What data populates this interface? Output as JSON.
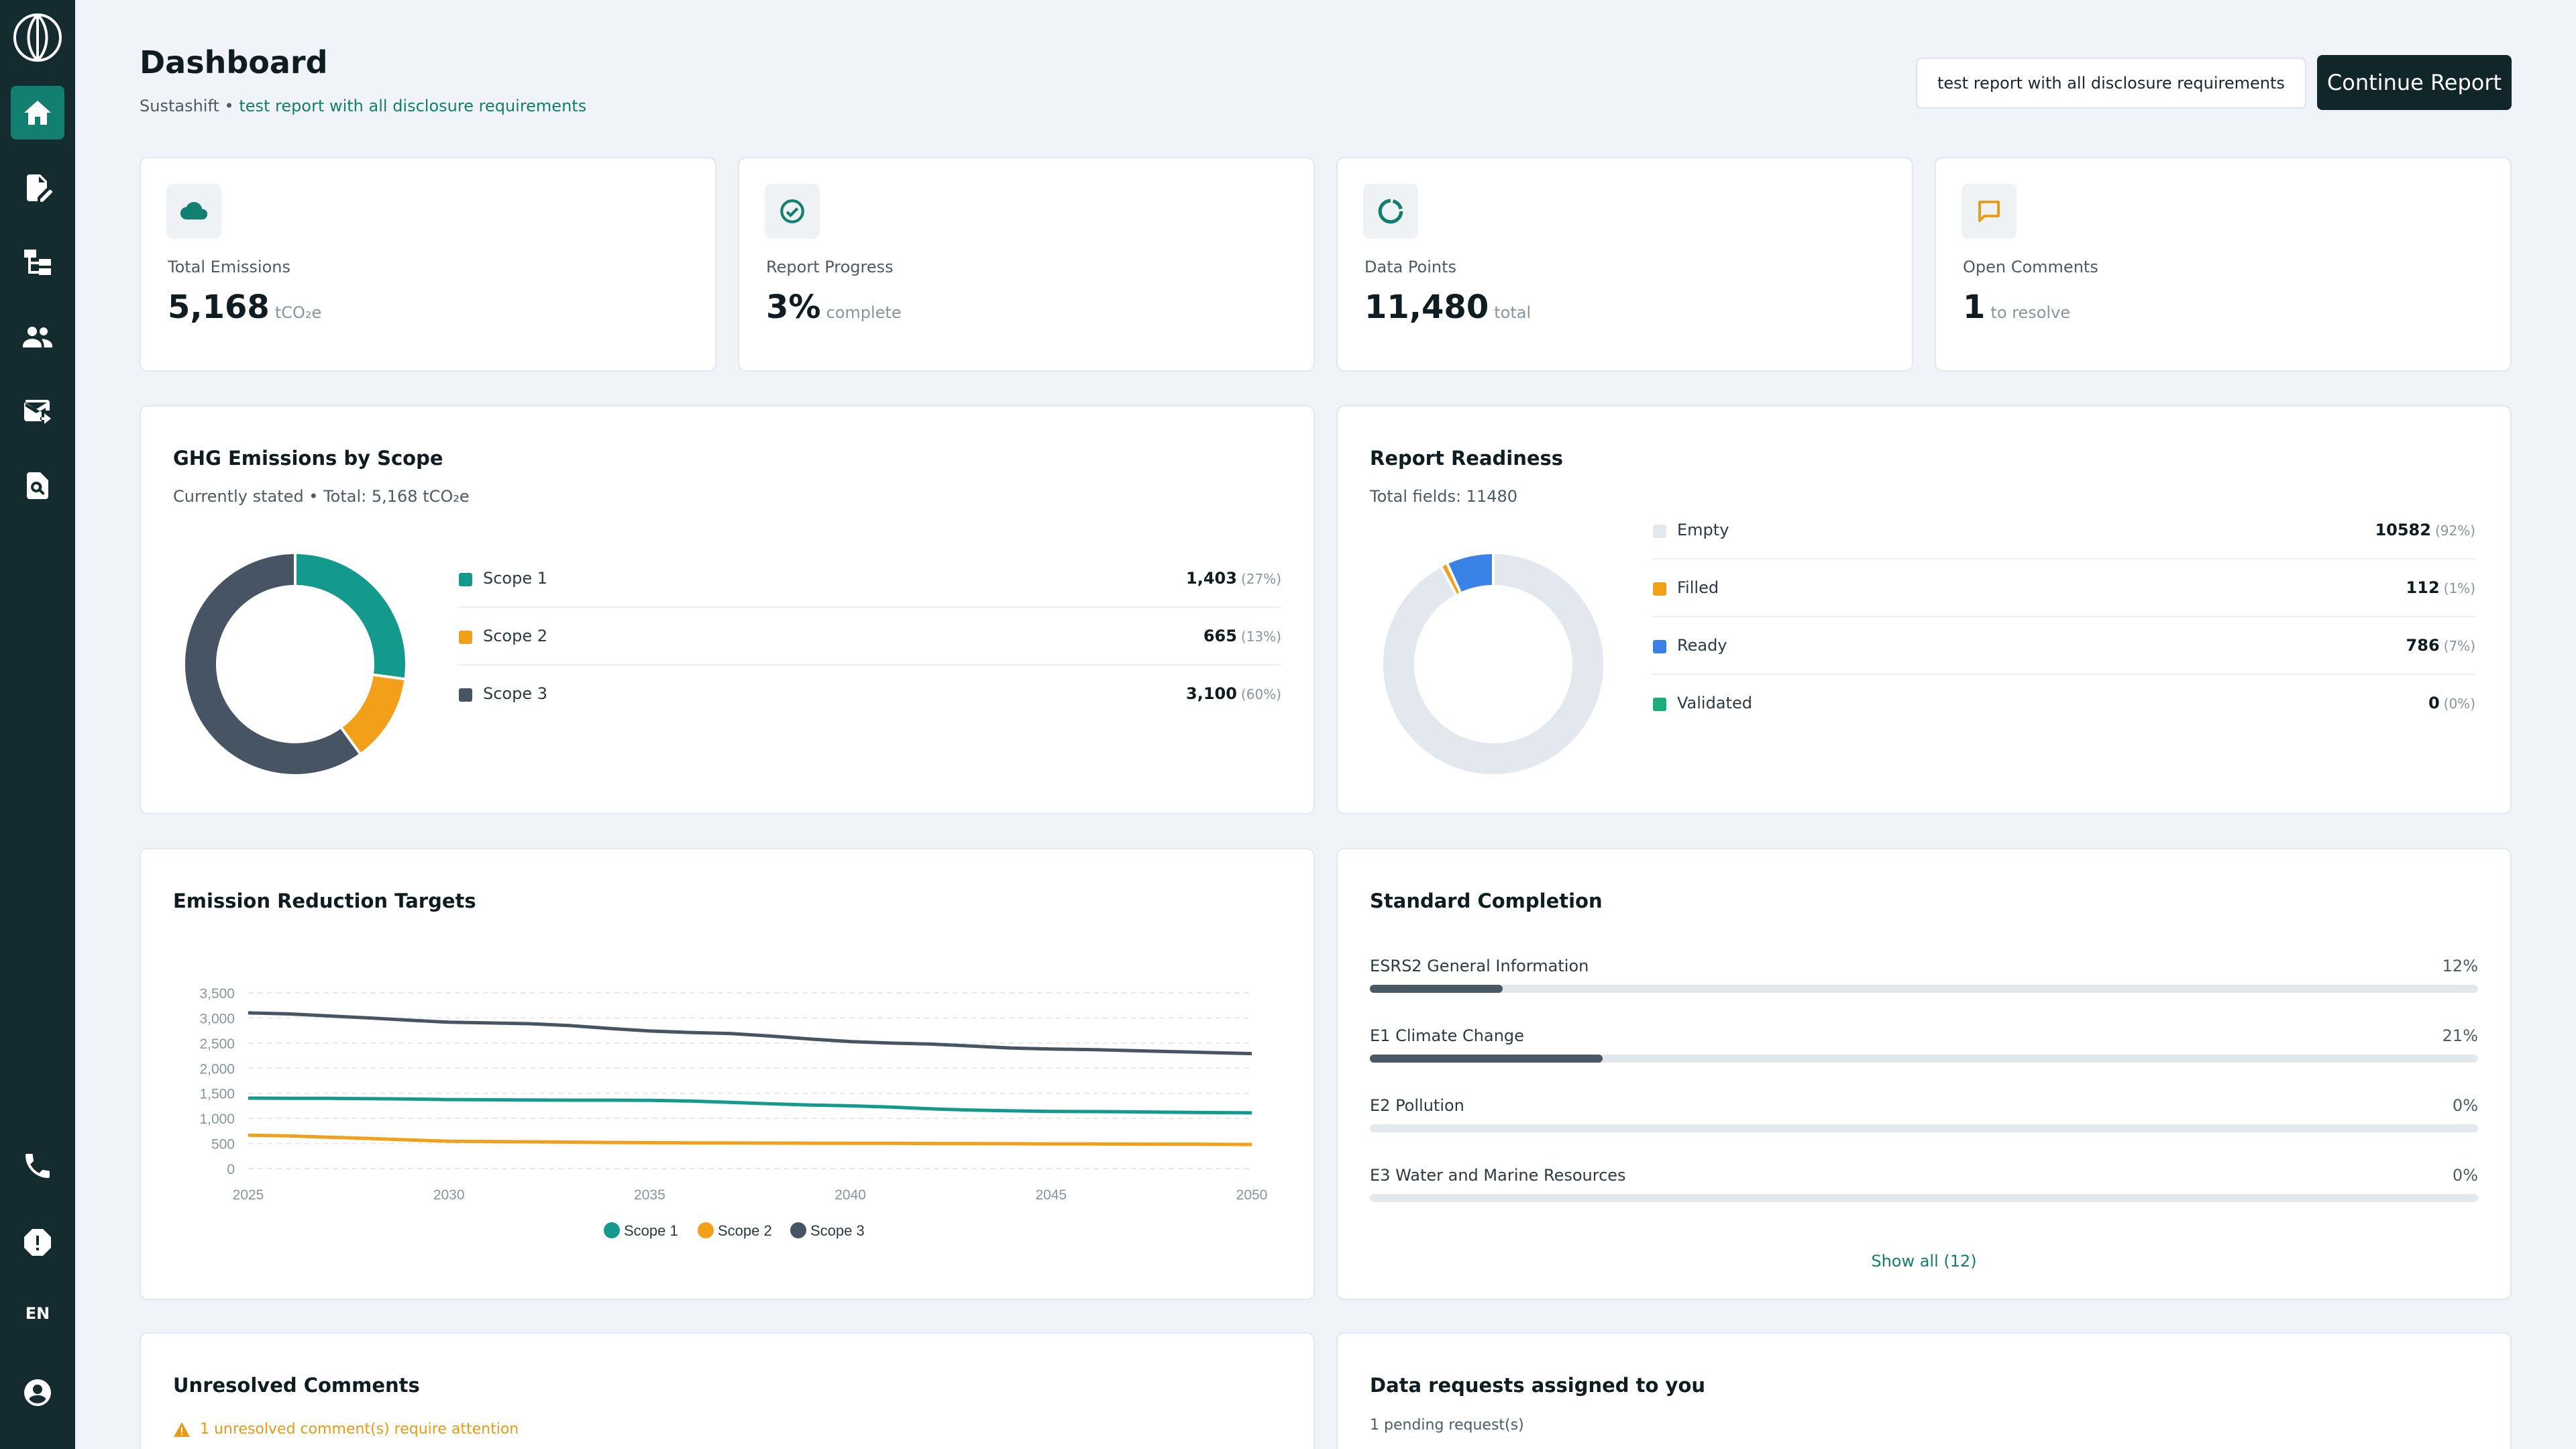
{
  "sidebar": {
    "items": [
      {
        "icon": "home-icon",
        "active": true
      },
      {
        "icon": "edit-document-icon"
      },
      {
        "icon": "hierarchy-icon"
      },
      {
        "icon": "people-icon"
      },
      {
        "icon": "forward-mail-icon"
      },
      {
        "icon": "document-search-icon"
      }
    ],
    "bottom": [
      {
        "icon": "phone-icon"
      },
      {
        "icon": "alert-icon"
      }
    ],
    "language": "EN",
    "account_icon": "account-icon"
  },
  "header": {
    "title": "Dashboard",
    "org": "Sustashift",
    "separator": "•",
    "report_name": "test report with all disclosure requirements",
    "report_select_value": "test report with all disclosure requirements",
    "continue_label": "Continue Report"
  },
  "stats": [
    {
      "label": "Total Emissions",
      "value": "5,168",
      "unit": "tCO₂e",
      "icon": "cloud-icon",
      "color": "#127f71"
    },
    {
      "label": "Report Progress",
      "value": "3%",
      "unit": "complete",
      "icon": "check-circle-icon",
      "color": "#127f71"
    },
    {
      "label": "Data Points",
      "value": "11,480",
      "unit": "total",
      "icon": "refresh-icon",
      "color": "#127f71"
    },
    {
      "label": "Open Comments",
      "value": "1",
      "unit": "to resolve",
      "icon": "comment-icon",
      "color": "#e89a12"
    }
  ],
  "ghg": {
    "title": "GHG Emissions by Scope",
    "subtitle": "Currently stated • Total: 5,168 tCO₂e",
    "rows": [
      {
        "name": "Scope 1",
        "value": "1,403",
        "pct": "(27%)",
        "color": "#139a8c",
        "share": 27.15
      },
      {
        "name": "Scope 2",
        "value": "665",
        "pct": "(13%)",
        "color": "#f2a01a",
        "share": 12.87
      },
      {
        "name": "Scope 3",
        "value": "3,100",
        "pct": "(60%)",
        "color": "#475463",
        "share": 59.98
      }
    ]
  },
  "readiness": {
    "title": "Report Readiness",
    "subtitle": "Total fields: 11480",
    "rows": [
      {
        "name": "Empty",
        "value": "10582",
        "pct": "(92%)",
        "color": "#e3e8ef",
        "share": 92.18
      },
      {
        "name": "Filled",
        "value": "112",
        "pct": "(1%)",
        "color": "#f2a01a",
        "share": 0.98
      },
      {
        "name": "Ready",
        "value": "786",
        "pct": "(7%)",
        "color": "#3b82e6",
        "share": 6.85
      },
      {
        "name": "Validated",
        "value": "0",
        "pct": "(0%)",
        "color": "#1aae7a",
        "share": 0
      }
    ]
  },
  "targets": {
    "title": "Emission Reduction Targets"
  },
  "chart_data": {
    "type": "line",
    "x": [
      2025,
      2026,
      2027,
      2028,
      2029,
      2030,
      2031,
      2032,
      2033,
      2034,
      2035,
      2036,
      2037,
      2038,
      2039,
      2040,
      2041,
      2042,
      2043,
      2044,
      2045,
      2046,
      2047,
      2048,
      2049,
      2050
    ],
    "xticks": [
      "2025",
      "2030",
      "2035",
      "2040",
      "2045",
      "2050"
    ],
    "yticks": [
      "3,500",
      "3,000",
      "2,500",
      "2,000",
      "1,500",
      "1,000",
      "500",
      "0"
    ],
    "ylim": [
      0,
      3500
    ],
    "grid": true,
    "legend": "bottom-center",
    "series": [
      {
        "name": "Scope 1",
        "color": "#139a8c",
        "values": [
          1403,
          1400,
          1398,
          1392,
          1385,
          1375,
          1370,
          1365,
          1362,
          1362,
          1360,
          1345,
          1320,
          1290,
          1265,
          1250,
          1225,
          1190,
          1165,
          1150,
          1140,
          1135,
          1130,
          1122,
          1115,
          1110
        ]
      },
      {
        "name": "Scope 2",
        "color": "#f2a01a",
        "values": [
          665,
          650,
          625,
          600,
          570,
          545,
          540,
          535,
          528,
          520,
          515,
          512,
          510,
          508,
          506,
          505,
          504,
          500,
          497,
          495,
          492,
          490,
          488,
          486,
          485,
          480
        ]
      },
      {
        "name": "Scope 3",
        "color": "#475463",
        "values": [
          3100,
          3080,
          3040,
          3000,
          2955,
          2915,
          2900,
          2885,
          2850,
          2790,
          2740,
          2710,
          2690,
          2640,
          2580,
          2530,
          2500,
          2480,
          2440,
          2400,
          2380,
          2370,
          2350,
          2330,
          2310,
          2290
        ]
      }
    ]
  },
  "standards": {
    "title": "Standard Completion",
    "items": [
      {
        "name": "ESRS2 General Information",
        "pct": "12%",
        "value": 12
      },
      {
        "name": "E1 Climate Change",
        "pct": "21%",
        "value": 21
      },
      {
        "name": "E2 Pollution",
        "pct": "0%",
        "value": 0
      },
      {
        "name": "E3 Water and Marine Resources",
        "pct": "0%",
        "value": 0
      }
    ],
    "show_all": "Show all (12)"
  },
  "comments": {
    "title": "Unresolved Comments",
    "warning": "1 unresolved comment(s) require attention"
  },
  "requests": {
    "title": "Data requests assigned to you",
    "subtitle": "1 pending request(s)"
  }
}
